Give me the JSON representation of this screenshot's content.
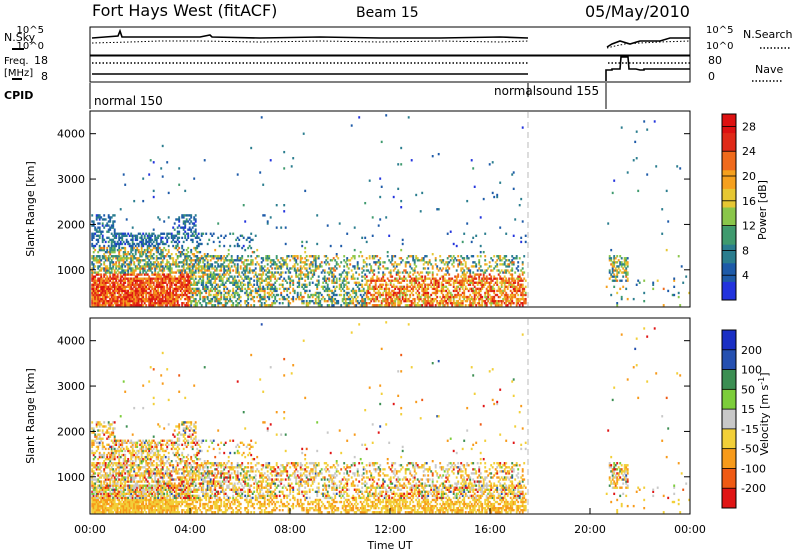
{
  "header": {
    "title": "Fort Hays West (fitACF)",
    "beam": "Beam 15",
    "date": "05/May/2010"
  },
  "labels": {
    "nsky": "N.Sky",
    "nsearch": "N.Search",
    "freq_line1": "Freq.",
    "freq_line2": "[MHz]",
    "nave": "Nave",
    "cpid": "CPID",
    "pow_tick_lo": "10^0",
    "pow_tick_hi": "10^5"
  },
  "cpid_modes": [
    "normal 150",
    "normalsound 155"
  ],
  "chart_data": [
    {
      "type": "line",
      "name": "noise",
      "series": [
        {
          "name": "N.Sky"
        },
        {
          "name": "N.Search"
        }
      ]
    },
    {
      "type": "line",
      "name": "frequency",
      "series": [
        {
          "name": "Freq."
        },
        {
          "name": "Nave"
        }
      ],
      "y_ticks_left": [
        8,
        18
      ],
      "y_ticks_right": [
        0,
        80
      ]
    },
    {
      "type": "heatmap",
      "name": "power",
      "ylabel": "Slant Range [km]",
      "y_ticks": [
        1000,
        2000,
        3000,
        4000
      ],
      "ylim": [
        180,
        4500
      ],
      "xlim": [
        0,
        24
      ],
      "colorbar_label": "Power [dB]",
      "colorbar_ticks": [
        4,
        8,
        12,
        16,
        20,
        24,
        28
      ],
      "colorbar_range": [
        0,
        30
      ]
    },
    {
      "type": "heatmap",
      "name": "velocity",
      "xlabel": "Time UT",
      "ylabel": "Slant Range [km]",
      "y_ticks": [
        1000,
        2000,
        3000,
        4000
      ],
      "ylim": [
        180,
        4500
      ],
      "x_ticks": [
        "00:00",
        "04:00",
        "08:00",
        "12:00",
        "16:00",
        "20:00",
        "00:00"
      ],
      "xlim": [
        0,
        24
      ],
      "colorbar_label": "Velocity [m s^-1]",
      "colorbar_ticks": [
        200,
        100,
        50,
        15,
        -15,
        -50,
        -100,
        -200
      ],
      "colorbar_range": [
        -250,
        250
      ]
    }
  ]
}
